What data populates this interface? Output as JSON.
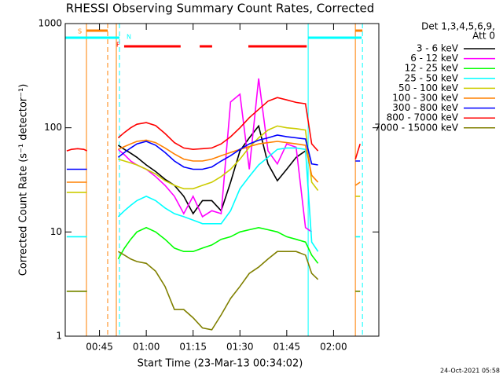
{
  "chart_data": {
    "type": "line",
    "title": "RHESSI Observing Summary Count Rates, Corrected",
    "xlabel": "Start Time (23-Mar-13 00:34:02)",
    "ylabel": "Corrected Count Rate (s⁻¹ detector⁻¹)",
    "legend_header": [
      "Det 1,3,4,5,6,9,",
      "Att 0"
    ],
    "footer": "24-Oct-2021 05:58",
    "log_y": true,
    "xlim": [
      34.03,
      134.5
    ],
    "ylim": [
      1,
      1000
    ],
    "xticks": [
      {
        "value": 45,
        "label": "00:45"
      },
      {
        "value": 60,
        "label": "01:00"
      },
      {
        "value": 75,
        "label": "01:15"
      },
      {
        "value": 90,
        "label": "01:30"
      },
      {
        "value": 105,
        "label": "01:45"
      },
      {
        "value": 120,
        "label": "02:00"
      }
    ],
    "yticks": [
      1,
      10,
      100,
      1000
    ],
    "x": [
      34.5,
      36,
      38,
      40,
      41,
      45,
      51,
      53,
      55,
      57,
      60,
      63,
      66,
      69,
      72,
      75,
      78,
      81,
      84,
      87,
      90,
      93,
      96,
      99,
      102,
      105,
      108,
      111,
      113,
      115,
      120,
      127,
      128.5
    ],
    "series": [
      {
        "name": "3 - 6 keV",
        "color": "#000000",
        "values": [
          null,
          null,
          null,
          null,
          null,
          null,
          68,
          62,
          57,
          52,
          44,
          38,
          32,
          28,
          22,
          15,
          20,
          20,
          16,
          30,
          60,
          80,
          104,
          45,
          31,
          40,
          52,
          60,
          null,
          null,
          null,
          null,
          null
        ]
      },
      {
        "name": "6 - 12 keV",
        "color": "#ff00ff",
        "values": [
          null,
          null,
          null,
          null,
          null,
          null,
          62,
          55,
          48,
          44,
          40,
          34,
          28,
          22,
          15,
          22,
          14,
          16,
          15,
          177,
          210,
          40,
          297,
          60,
          45,
          70,
          65,
          11,
          10,
          null,
          null,
          null,
          null
        ]
      },
      {
        "name": "12 - 25 keV",
        "color": "#00ff00",
        "values": [
          2.7,
          2.7,
          2.7,
          2.7,
          2.7,
          null,
          5.5,
          7,
          8.5,
          10,
          11,
          10,
          8.5,
          7,
          6.5,
          6.5,
          7,
          7.5,
          8.5,
          9,
          10,
          10.5,
          11,
          10.5,
          10,
          9,
          8.5,
          8,
          6,
          5,
          null,
          2.7,
          2.7
        ]
      },
      {
        "name": "25 - 50 keV",
        "color": "#00ffff",
        "values": [
          9,
          9,
          9,
          9,
          9,
          null,
          14,
          16,
          18,
          20,
          22,
          20,
          17,
          15,
          14,
          13,
          12,
          12,
          12,
          16,
          26,
          34,
          44,
          52,
          62,
          64,
          64,
          62,
          8,
          6.5,
          null,
          9,
          9
        ]
      },
      {
        "name": "50 - 100 keV",
        "color": "#cccc00",
        "values": [
          24,
          24,
          24,
          24,
          24,
          null,
          50,
          48,
          46,
          44,
          40,
          36,
          31,
          28,
          26,
          26,
          28,
          30,
          34,
          40,
          50,
          65,
          80,
          95,
          104,
          100,
          98,
          95,
          30,
          25,
          null,
          22,
          22
        ]
      },
      {
        "name": "100 - 300 keV",
        "color": "#ff8000",
        "values": [
          30,
          30,
          30,
          30,
          30,
          null,
          62,
          66,
          70,
          74,
          76,
          72,
          64,
          56,
          50,
          48,
          48,
          50,
          54,
          58,
          62,
          66,
          70,
          72,
          74,
          72,
          70,
          68,
          35,
          30,
          null,
          28,
          30
        ]
      },
      {
        "name": "300 - 800 keV",
        "color": "#0000ff",
        "values": [
          40,
          40,
          40,
          40,
          40,
          null,
          52,
          58,
          64,
          70,
          74,
          68,
          58,
          48,
          42,
          40,
          40,
          42,
          48,
          54,
          62,
          70,
          76,
          80,
          85,
          82,
          80,
          78,
          45,
          44,
          null,
          48,
          48
        ]
      },
      {
        "name": "800 - 7000 keV",
        "color": "#ff0000",
        "values": [
          60,
          62,
          63,
          62,
          60,
          null,
          80,
          90,
          100,
          108,
          112,
          105,
          88,
          72,
          64,
          62,
          63,
          64,
          70,
          82,
          100,
          125,
          150,
          180,
          195,
          185,
          175,
          170,
          70,
          60,
          null,
          50,
          70
        ]
      },
      {
        "name": "7000 - 15000 keV",
        "color": "#808000",
        "values": [
          2.7,
          2.7,
          2.7,
          2.7,
          2.7,
          null,
          6.5,
          6,
          5.5,
          5.2,
          5,
          4.2,
          3,
          1.8,
          1.8,
          1.5,
          1.2,
          1.15,
          1.6,
          2.3,
          3,
          4,
          4.6,
          5.5,
          6.5,
          6.5,
          6.5,
          6,
          4,
          3.5,
          null,
          2.7,
          2.7
        ]
      }
    ],
    "flags": [
      {
        "label": "S",
        "color": "#ff8000",
        "intervals": [
          [
            40.83,
            47.63
          ],
          [
            126.98,
            129.25
          ]
        ]
      },
      {
        "label": "F",
        "color": "#ff0000",
        "intervals": [
          [
            52.9,
            71.0
          ],
          [
            77.1,
            81.1
          ],
          [
            92.7,
            111.4
          ]
        ]
      },
      {
        "label": "N",
        "color": "#00ffff",
        "intervals": [
          [
            34.03,
            51.41
          ],
          [
            111.86,
            129.0
          ]
        ]
      }
    ],
    "vlines": [
      {
        "x": 40.83,
        "color": "#ff8000",
        "dashed": false
      },
      {
        "x": 47.63,
        "color": "#ff8000",
        "dashed": true
      },
      {
        "x": 50.4,
        "color": "#ff8000",
        "dashed": false
      },
      {
        "x": 51.41,
        "color": "#00ffff",
        "dashed": true
      },
      {
        "x": 111.86,
        "color": "#00ffff",
        "dashed": false
      },
      {
        "x": 126.98,
        "color": "#ff8000",
        "dashed": false
      },
      {
        "x": 129.25,
        "color": "#00ffff",
        "dashed": true
      }
    ]
  }
}
